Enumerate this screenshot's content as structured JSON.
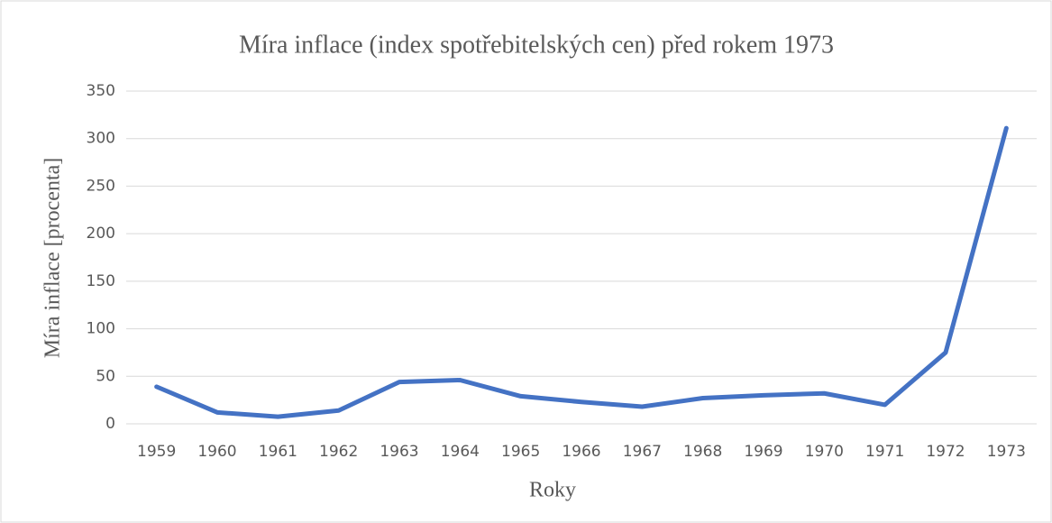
{
  "chart_data": {
    "type": "line",
    "title": "Míra inflace (index spotřebitelských cen) před rokem 1973",
    "x_label": "Roky",
    "y_label": "Míra inflace [procenta]",
    "categories": [
      "1959",
      "1960",
      "1961",
      "1962",
      "1963",
      "1964",
      "1965",
      "1966",
      "1967",
      "1968",
      "1969",
      "1970",
      "1971",
      "1972",
      "1973"
    ],
    "series": [
      {
        "name": "Míra inflace",
        "color": "#4472c4",
        "values": [
          39,
          12,
          7.5,
          14,
          44,
          46,
          29,
          23,
          18,
          27,
          30,
          32,
          20,
          75,
          311
        ]
      }
    ],
    "ylim": [
      0,
      350
    ],
    "yticks": [
      0,
      50,
      100,
      150,
      200,
      250,
      300,
      350
    ],
    "grid": true
  }
}
